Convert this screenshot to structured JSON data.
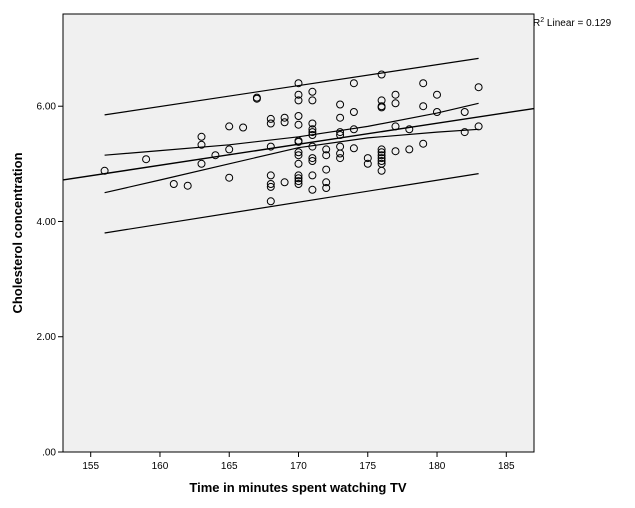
{
  "chart_data": {
    "type": "scatter",
    "xlabel": "Time in minutes spent watching TV",
    "ylabel": "Cholesterol concentration",
    "xlim": [
      153,
      187
    ],
    "ylim": [
      0,
      7.6
    ],
    "x_ticks": [
      155,
      160,
      165,
      170,
      175,
      180,
      185
    ],
    "y_ticks": [
      0,
      2,
      4,
      6
    ],
    "y_tick_labels": [
      ".00",
      "2.00",
      "4.00",
      "6.00"
    ],
    "grid": false,
    "annotation": {
      "r2_prefix": "R",
      "r2_sup": "2",
      "r2_text": " Linear = 0.129"
    },
    "fit_line": {
      "x": [
        153,
        187
      ],
      "y": [
        4.72,
        5.96
      ]
    },
    "mean_ci": {
      "upper": [
        [
          156,
          5.15
        ],
        [
          160,
          5.23
        ],
        [
          165,
          5.33
        ],
        [
          170,
          5.47
        ],
        [
          175,
          5.65
        ],
        [
          180,
          5.88
        ],
        [
          183,
          6.05
        ]
      ],
      "lower": [
        [
          156,
          4.5
        ],
        [
          160,
          4.72
        ],
        [
          165,
          5.0
        ],
        [
          170,
          5.28
        ],
        [
          175,
          5.45
        ],
        [
          180,
          5.55
        ],
        [
          183,
          5.6
        ]
      ]
    },
    "individual_ci": {
      "upper": [
        [
          156,
          5.85
        ],
        [
          183,
          6.83
        ]
      ],
      "lower": [
        [
          156,
          3.8
        ],
        [
          183,
          4.83
        ]
      ]
    },
    "points": [
      [
        156,
        4.88
      ],
      [
        159,
        5.08
      ],
      [
        161,
        4.65
      ],
      [
        162,
        4.62
      ],
      [
        163,
        5.47
      ],
      [
        163,
        5.33
      ],
      [
        163,
        5.0
      ],
      [
        164,
        5.15
      ],
      [
        165,
        5.65
      ],
      [
        165,
        5.25
      ],
      [
        165,
        4.76
      ],
      [
        166,
        5.63
      ],
      [
        167,
        6.15
      ],
      [
        167,
        6.13
      ],
      [
        168,
        5.78
      ],
      [
        168,
        5.7
      ],
      [
        168,
        5.3
      ],
      [
        168,
        4.8
      ],
      [
        168,
        4.65
      ],
      [
        168,
        4.6
      ],
      [
        168,
        4.35
      ],
      [
        169,
        5.8
      ],
      [
        169,
        5.72
      ],
      [
        169,
        4.68
      ],
      [
        170,
        6.4
      ],
      [
        170,
        6.2
      ],
      [
        170,
        6.1
      ],
      [
        170,
        5.83
      ],
      [
        170,
        5.68
      ],
      [
        170,
        5.4
      ],
      [
        170,
        5.38
      ],
      [
        170,
        5.2
      ],
      [
        170,
        5.15
      ],
      [
        170,
        5.0
      ],
      [
        170,
        4.8
      ],
      [
        170,
        4.75
      ],
      [
        170,
        4.7
      ],
      [
        170,
        4.65
      ],
      [
        171,
        6.25
      ],
      [
        171,
        6.1
      ],
      [
        171,
        5.7
      ],
      [
        171,
        5.6
      ],
      [
        171,
        5.55
      ],
      [
        171,
        5.5
      ],
      [
        171,
        5.3
      ],
      [
        171,
        5.1
      ],
      [
        171,
        5.05
      ],
      [
        171,
        4.8
      ],
      [
        171,
        4.55
      ],
      [
        172,
        5.25
      ],
      [
        172,
        5.15
      ],
      [
        172,
        4.9
      ],
      [
        172,
        4.68
      ],
      [
        172,
        4.58
      ],
      [
        173,
        6.03
      ],
      [
        173,
        5.8
      ],
      [
        173,
        5.55
      ],
      [
        173,
        5.5
      ],
      [
        173,
        5.3
      ],
      [
        173,
        5.18
      ],
      [
        173,
        5.1
      ],
      [
        174,
        6.4
      ],
      [
        174,
        5.9
      ],
      [
        174,
        5.6
      ],
      [
        174,
        5.27
      ],
      [
        175,
        5.1
      ],
      [
        175,
        5.0
      ],
      [
        176,
        6.55
      ],
      [
        176,
        6.1
      ],
      [
        176,
        6.0
      ],
      [
        176,
        5.98
      ],
      [
        176,
        5.25
      ],
      [
        176,
        5.2
      ],
      [
        176,
        5.15
      ],
      [
        176,
        5.1
      ],
      [
        176,
        5.05
      ],
      [
        176,
        5.0
      ],
      [
        176,
        4.88
      ],
      [
        177,
        6.2
      ],
      [
        177,
        6.05
      ],
      [
        177,
        5.65
      ],
      [
        177,
        5.22
      ],
      [
        178,
        5.6
      ],
      [
        178,
        5.25
      ],
      [
        179,
        6.4
      ],
      [
        179,
        6.0
      ],
      [
        179,
        5.35
      ],
      [
        180,
        6.2
      ],
      [
        180,
        5.9
      ],
      [
        182,
        5.9
      ],
      [
        182,
        5.55
      ],
      [
        183,
        6.33
      ],
      [
        183,
        5.65
      ]
    ]
  }
}
